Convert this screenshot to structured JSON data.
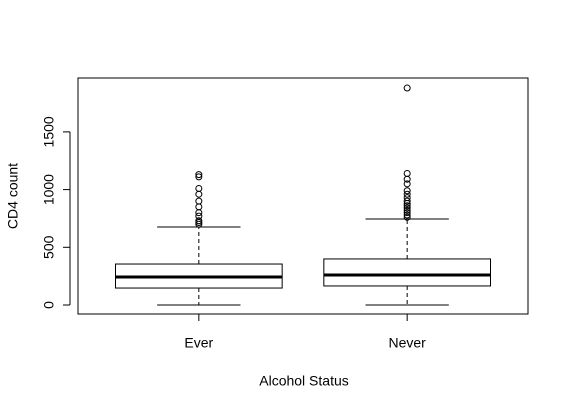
{
  "chart_data": {
    "type": "box",
    "x_label": "Alcohol Status",
    "y_label": "CD4 count",
    "categories": [
      "Ever",
      "Never"
    ],
    "boxes": [
      {
        "min": 0,
        "q1": 147,
        "median": 243,
        "q3": 355,
        "max": 676,
        "outliers": [
          700,
          715,
          730,
          770,
          800,
          850,
          900,
          960,
          1010,
          1110,
          1130
        ]
      },
      {
        "min": 0,
        "q1": 165,
        "median": 260,
        "q3": 399,
        "max": 745,
        "outliers": [
          760,
          780,
          800,
          820,
          840,
          860,
          880,
          900,
          930,
          960,
          990,
          1050,
          1090,
          1140,
          1880
        ]
      }
    ],
    "color": "#000000",
    "ylim": [
      -78,
      1967
    ],
    "yticks": [
      0,
      500,
      1000,
      1500
    ]
  }
}
